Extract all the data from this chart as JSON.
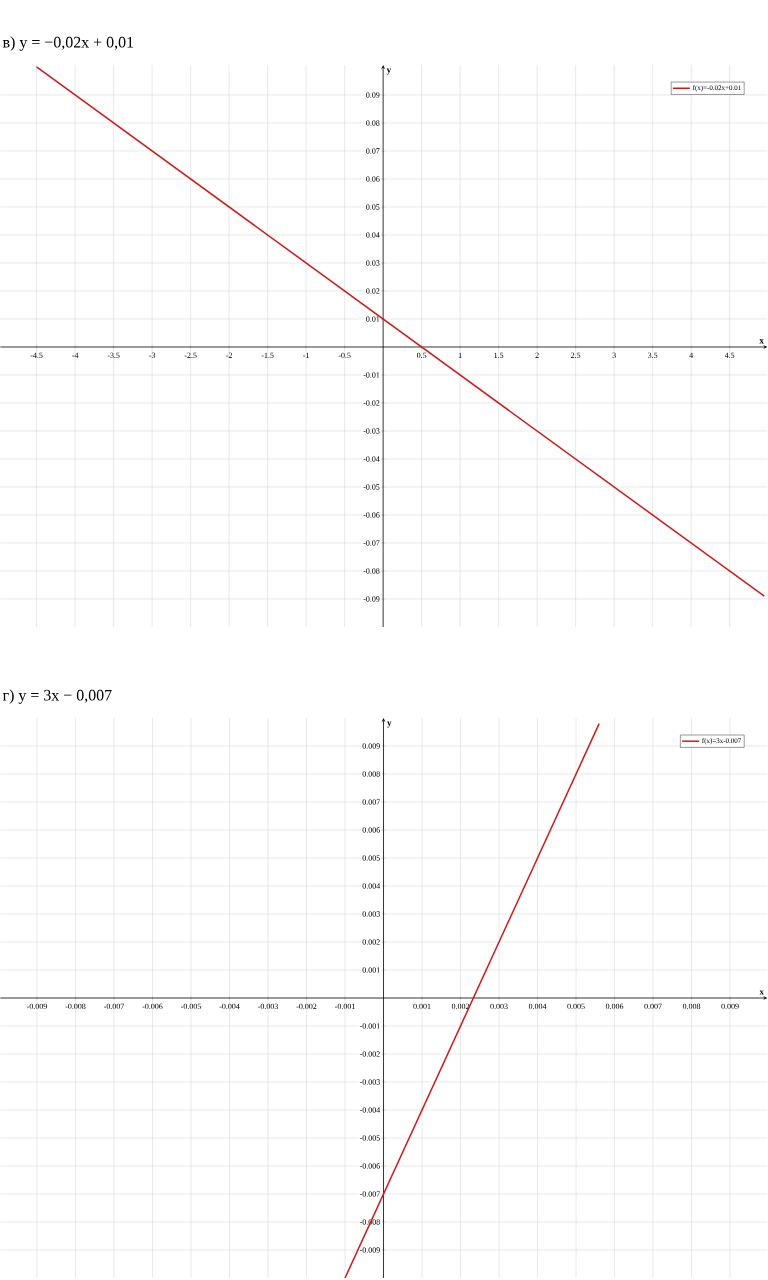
{
  "chart_data": [
    {
      "type": "line",
      "title": "в) y = −0,02x + 0,01",
      "xlabel": "x",
      "ylabel": "y",
      "xlim": [
        -4.97,
        4.99
      ],
      "ylim": [
        -0.1,
        0.1007
      ],
      "xticks": [
        -4.5,
        -4,
        -3.5,
        -3,
        -2.5,
        -2,
        -1.5,
        -1,
        -0.5,
        0.5,
        1,
        1.5,
        2,
        2.5,
        3,
        3.5,
        4,
        4.5
      ],
      "yticks": [
        -0.09,
        -0.08,
        -0.07,
        -0.06,
        -0.05,
        -0.04,
        -0.03,
        -0.02,
        -0.01,
        0.01,
        0.02,
        0.03,
        0.04,
        0.05,
        0.06,
        0.07,
        0.08,
        0.09
      ],
      "grid": true,
      "legend": "top right",
      "series": [
        {
          "name": "f(x)=-0.02x+0.01",
          "color": "#d01818",
          "x": [
            -4.5,
            4.95
          ],
          "values": [
            0.1,
            -0.089
          ]
        }
      ]
    },
    {
      "type": "line",
      "title": "г) y = 3x − 0,007",
      "xlabel": "x",
      "ylabel": "y",
      "xlim": [
        -0.00995,
        0.00997
      ],
      "ylim": [
        -0.01,
        0.01
      ],
      "xticks": [
        -0.009,
        -0.008,
        -0.007,
        -0.006,
        -0.005,
        -0.004,
        -0.003,
        -0.002,
        -0.001,
        0.001,
        0.002,
        0.003,
        0.004,
        0.005,
        0.006,
        0.007,
        0.008,
        0.009
      ],
      "yticks": [
        -0.009,
        -0.008,
        -0.007,
        -0.006,
        -0.005,
        -0.004,
        -0.003,
        -0.002,
        -0.001,
        0.001,
        0.002,
        0.003,
        0.004,
        0.005,
        0.006,
        0.007,
        0.008,
        0.009
      ],
      "grid": true,
      "legend": "top right",
      "series": [
        {
          "name": "f(x)=3x-0.007",
          "color": "#d01818",
          "x": [
            -0.001,
            0.0056
          ],
          "values": [
            -0.01,
            0.0098
          ]
        }
      ]
    }
  ]
}
